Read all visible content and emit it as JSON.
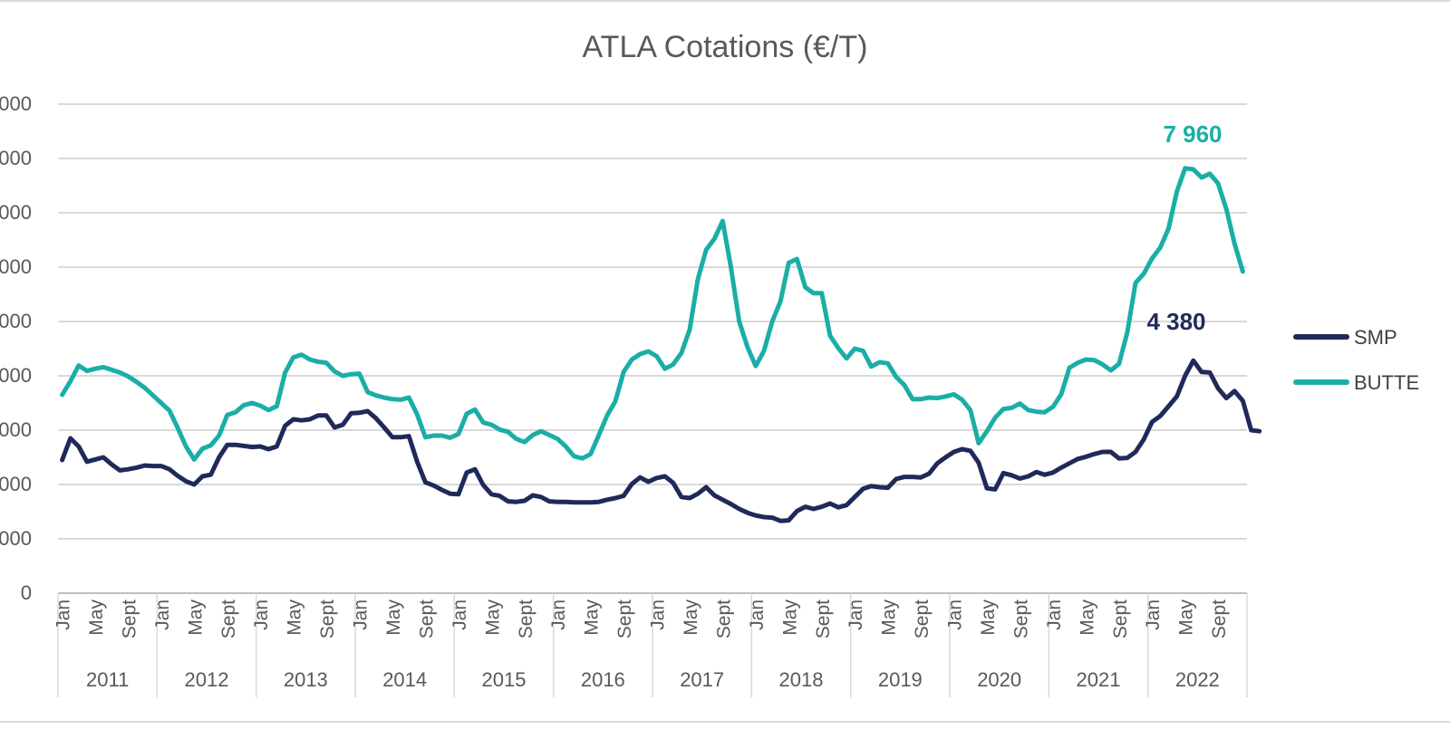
{
  "chart_data": {
    "type": "line",
    "title": "ATLA Cotations (€/T)",
    "xlabel": "",
    "ylabel": "",
    "ylim": [
      0,
      9000
    ],
    "y_ticks": [
      "0",
      "000",
      "000",
      "000",
      "000",
      "000",
      "000",
      "000",
      "000",
      "000"
    ],
    "grid": true,
    "legend_position": "right",
    "years": [
      "2011",
      "2012",
      "2013",
      "2014",
      "2015",
      "2016",
      "2017",
      "2018",
      "2019",
      "2020",
      "2021",
      "2022"
    ],
    "month_ticks": [
      "Jan",
      "May",
      "Sept"
    ],
    "annotations": [
      {
        "text": "7 960",
        "series": "BUTTE"
      },
      {
        "text": "4 380",
        "series": "SMP"
      }
    ],
    "series": [
      {
        "name": "SMP",
        "color": "#1f2a5a",
        "values": [
          2450,
          2850,
          2700,
          2420,
          2460,
          2500,
          2370,
          2260,
          2280,
          2310,
          2350,
          2340,
          2340,
          2280,
          2160,
          2060,
          2000,
          2150,
          2180,
          2500,
          2730,
          2730,
          2710,
          2690,
          2700,
          2650,
          2700,
          3080,
          3200,
          3180,
          3200,
          3270,
          3270,
          3050,
          3100,
          3310,
          3320,
          3350,
          3220,
          3050,
          2870,
          2870,
          2890,
          2420,
          2040,
          1980,
          1900,
          1830,
          1820,
          2220,
          2280,
          1990,
          1820,
          1790,
          1690,
          1680,
          1700,
          1800,
          1770,
          1690,
          1680,
          1680,
          1670,
          1670,
          1670,
          1680,
          1720,
          1750,
          1790,
          2010,
          2130,
          2050,
          2120,
          2150,
          2030,
          1770,
          1750,
          1830,
          1950,
          1800,
          1720,
          1640,
          1550,
          1480,
          1430,
          1400,
          1390,
          1330,
          1340,
          1510,
          1590,
          1550,
          1590,
          1650,
          1580,
          1620,
          1770,
          1920,
          1970,
          1950,
          1940,
          2100,
          2140,
          2140,
          2130,
          2200,
          2390,
          2500,
          2600,
          2650,
          2620,
          2400,
          1930,
          1910,
          2210,
          2170,
          2110,
          2150,
          2230,
          2180,
          2220,
          2310,
          2390,
          2470,
          2510,
          2560,
          2600,
          2600,
          2480,
          2490,
          2600,
          2830,
          3150,
          3260,
          3440,
          3620,
          4000,
          4280,
          4070,
          4060,
          3770,
          3590,
          3720,
          3540,
          3000,
          2980
        ]
      },
      {
        "name": "BUTTE",
        "color": "#1aaea6",
        "values": [
          3650,
          3900,
          4190,
          4090,
          4130,
          4160,
          4110,
          4060,
          3990,
          3890,
          3780,
          3640,
          3500,
          3360,
          3040,
          2700,
          2460,
          2660,
          2720,
          2900,
          3280,
          3330,
          3460,
          3500,
          3450,
          3370,
          3440,
          4060,
          4340,
          4390,
          4300,
          4260,
          4240,
          4080,
          4000,
          4030,
          4040,
          3700,
          3640,
          3600,
          3570,
          3560,
          3600,
          3290,
          2870,
          2900,
          2900,
          2860,
          2930,
          3300,
          3380,
          3140,
          3100,
          3010,
          2970,
          2840,
          2780,
          2910,
          2980,
          2910,
          2840,
          2700,
          2520,
          2480,
          2560,
          2910,
          3270,
          3530,
          4070,
          4300,
          4400,
          4450,
          4360,
          4130,
          4210,
          4420,
          4850,
          5780,
          6320,
          6520,
          6850,
          5990,
          5000,
          4530,
          4180,
          4460,
          5000,
          5370,
          6080,
          6150,
          5630,
          5520,
          5520,
          4740,
          4510,
          4320,
          4500,
          4460,
          4170,
          4250,
          4230,
          3980,
          3830,
          3570,
          3570,
          3600,
          3590,
          3620,
          3660,
          3560,
          3370,
          2760,
          2980,
          3230,
          3390,
          3410,
          3490,
          3370,
          3340,
          3330,
          3430,
          3660,
          4150,
          4240,
          4300,
          4290,
          4210,
          4100,
          4220,
          4800,
          5710,
          5880,
          6160,
          6360,
          6710,
          7390,
          7820,
          7800,
          7650,
          7720,
          7540,
          7070,
          6430,
          5920
        ]
      }
    ]
  }
}
